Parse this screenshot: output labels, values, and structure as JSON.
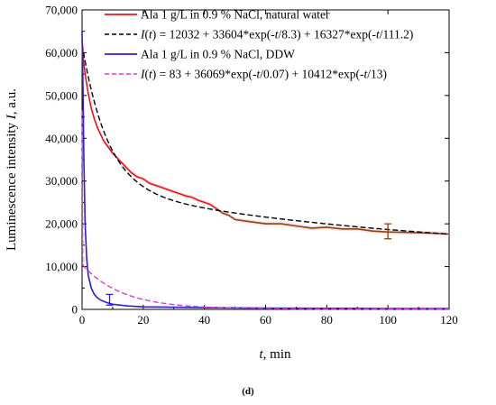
{
  "chart_data": {
    "type": "line",
    "xlabel": "t, min",
    "ylabel": "Luminescence intensity I, a.u.",
    "panel_label": "(d)",
    "xlim": [
      0,
      120
    ],
    "ylim": [
      0,
      70000
    ],
    "x_ticks": [
      0,
      20,
      40,
      60,
      80,
      100,
      120
    ],
    "y_ticks": [
      0,
      10000,
      20000,
      30000,
      40000,
      50000,
      60000,
      70000
    ],
    "x_tick_labels": [
      "0",
      "20",
      "40",
      "60",
      "80",
      "100",
      "120"
    ],
    "y_tick_labels": [
      "0",
      "10,000",
      "20,000",
      "30,000",
      "40,000",
      "50,000",
      "60,000",
      "70,000"
    ],
    "grid": false,
    "legend_position": "top-right",
    "series": [
      {
        "name": "Ala 1 g/L in 0.9 % NaCl, natural water",
        "color": "#e8141c",
        "tail_color": "#8b4513",
        "style": "solid",
        "x": [
          0,
          0.5,
          1,
          2,
          3,
          4,
          5,
          6,
          7,
          8,
          10,
          12,
          14,
          16,
          18,
          20,
          22,
          24,
          26,
          28,
          30,
          32,
          34,
          36,
          38,
          40,
          42,
          44,
          46,
          48,
          50,
          55,
          60,
          65,
          70,
          75,
          80,
          85,
          90,
          95,
          100,
          105,
          110,
          115,
          120
        ],
        "y": [
          63000,
          58000,
          55000,
          50500,
          47000,
          44500,
          42500,
          41000,
          39500,
          38500,
          36500,
          35000,
          33500,
          32000,
          31000,
          30500,
          29500,
          29000,
          28500,
          28000,
          27500,
          27000,
          26500,
          26200,
          25500,
          25000,
          24500,
          23500,
          22500,
          22000,
          21000,
          20500,
          20000,
          20000,
          19500,
          19000,
          19200,
          18800,
          18800,
          18300,
          18100,
          18000,
          17900,
          17800,
          17600
        ]
      },
      {
        "name": "I(t) = 12032 + 33604*exp(-t/8.3) + 16327*exp(-t/111.2)",
        "color": "#000000",
        "style": "dashed",
        "fit": {
          "a0": 12032,
          "a1": 33604,
          "t1": 8.3,
          "a2": 16327,
          "t2": 111.2
        }
      },
      {
        "name": "Ala 1 g/L in 0.9 % NaCl, DDW",
        "color": "#2b1fd6",
        "style": "solid",
        "x": [
          0,
          0.3,
          0.6,
          1,
          1.5,
          2,
          3,
          4,
          5,
          6,
          8,
          10,
          15,
          20,
          30,
          40,
          50,
          60,
          80,
          100,
          120
        ],
        "y": [
          65000,
          52000,
          35000,
          20000,
          12000,
          8000,
          5000,
          3500,
          2700,
          2200,
          1600,
          1200,
          800,
          600,
          500,
          400,
          350,
          300,
          250,
          220,
          200
        ]
      },
      {
        "name": "I(t) = 83 + 36069*exp(-t/0.07) + 10412*exp(-t/13)",
        "color": "#d63fd0",
        "style": "dashed",
        "fit": {
          "a0": 83,
          "a1": 36069,
          "t1": 0.07,
          "a2": 10412,
          "t2": 13
        }
      }
    ],
    "error_bars": [
      {
        "x": 100,
        "y": 18200,
        "low": 16500,
        "high": 20000,
        "color": "#8b4513"
      },
      {
        "x": 9,
        "y": 2200,
        "low": 1000,
        "high": 3500,
        "color": "#2b1fd6"
      }
    ]
  },
  "legend": {
    "entry1_text": "Ala 1 g/L in 0.9 % NaCl, natural water",
    "entry2_prefix": "I",
    "entry2_var": "t",
    "entry2_mid": ") = 12032 + 33604*exp(-",
    "entry2_t1": "t",
    "entry2_mid2": "/8.3) + 16327*exp(-",
    "entry2_t2": "t",
    "entry2_end": "/111.2)",
    "entry3_text": "Ala 1 g/L in 0.9 % NaCl, DDW",
    "entry4_prefix": "I",
    "entry4_var": "t",
    "entry4_mid": ") = 83 + 36069*exp(-",
    "entry4_t1": "t",
    "entry4_mid2": "/0.07) + 10412*exp(-",
    "entry4_t2": "t",
    "entry4_end": "/13)"
  }
}
